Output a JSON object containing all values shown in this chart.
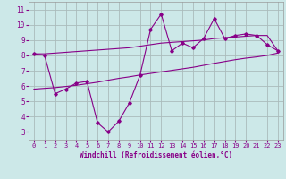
{
  "xlabel": "Windchill (Refroidissement éolien,°C)",
  "background_color": "#cce8e8",
  "grid_color": "#aabbbb",
  "line_color": "#880088",
  "x_hours": [
    0,
    1,
    2,
    3,
    4,
    5,
    6,
    7,
    8,
    9,
    10,
    11,
    12,
    13,
    14,
    15,
    16,
    17,
    18,
    19,
    20,
    21,
    22,
    23
  ],
  "windchill": [
    8.1,
    8.0,
    5.5,
    5.8,
    6.2,
    6.3,
    3.6,
    3.0,
    3.7,
    4.9,
    6.7,
    9.7,
    10.7,
    8.3,
    8.8,
    8.5,
    9.1,
    10.4,
    9.1,
    9.3,
    9.4,
    9.3,
    8.7,
    8.3
  ],
  "temp_line": [
    8.1,
    8.1,
    8.15,
    8.2,
    8.25,
    8.3,
    8.35,
    8.4,
    8.45,
    8.5,
    8.6,
    8.7,
    8.8,
    8.85,
    8.9,
    8.95,
    9.0,
    9.1,
    9.15,
    9.2,
    9.25,
    9.3,
    9.3,
    8.3
  ],
  "ref_line": [
    5.8,
    5.85,
    5.9,
    5.97,
    6.05,
    6.15,
    6.25,
    6.38,
    6.5,
    6.6,
    6.72,
    6.82,
    6.92,
    7.02,
    7.12,
    7.22,
    7.35,
    7.48,
    7.6,
    7.72,
    7.82,
    7.9,
    8.0,
    8.15
  ],
  "ylim": [
    2.5,
    11.5
  ],
  "xlim": [
    -0.5,
    23.5
  ],
  "yticks": [
    3,
    4,
    5,
    6,
    7,
    8,
    9,
    10,
    11
  ],
  "xticks": [
    0,
    1,
    2,
    3,
    4,
    5,
    6,
    7,
    8,
    9,
    10,
    11,
    12,
    13,
    14,
    15,
    16,
    17,
    18,
    19,
    20,
    21,
    22,
    23
  ],
  "xlabel_fontsize": 5.5,
  "tick_fontsize": 5.0,
  "ytick_fontsize": 5.5
}
